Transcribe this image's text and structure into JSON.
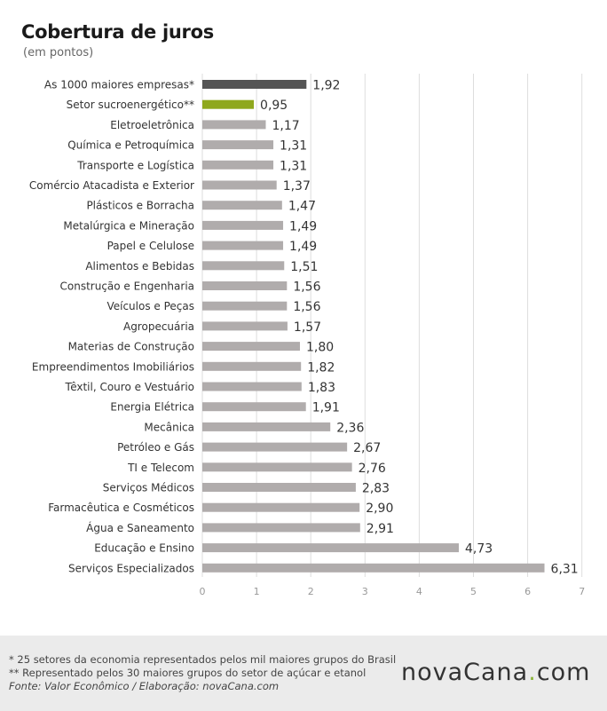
{
  "chart_data": {
    "type": "bar",
    "orientation": "horizontal",
    "title": "Cobertura de juros",
    "subtitle": "(em pontos)",
    "xlim": [
      0,
      7
    ],
    "xticks": [
      0,
      1,
      2,
      3,
      4,
      5,
      6,
      7
    ],
    "grid": true,
    "categories": [
      "As 1000 maiores empresas*",
      "Setor sucroenergético**",
      "Eletroeletrônica",
      "Química e Petroquímica",
      "Transporte e Logística",
      "Comércio Atacadista e Exterior",
      "Plásticos e Borracha",
      "Metalúrgica e Mineração",
      "Papel e Celulose",
      "Alimentos e Bebidas",
      "Construção e Engenharia",
      "Veículos e Peças",
      "Agropecuária",
      "Materias de Construção",
      "Empreendimentos Imobiliários",
      "Têxtil, Couro e Vestuário",
      "Energia Elétrica",
      "Mecânica",
      "Petróleo e Gás",
      "TI e Telecom",
      "Serviços Médicos",
      "Farmacêutica e Cosméticos",
      "Água e Saneamento",
      "Educação e Ensino",
      "Serviços Especializados"
    ],
    "values": [
      1.92,
      0.95,
      1.17,
      1.31,
      1.31,
      1.37,
      1.47,
      1.49,
      1.49,
      1.51,
      1.56,
      1.56,
      1.57,
      1.8,
      1.82,
      1.83,
      1.91,
      2.36,
      2.67,
      2.76,
      2.83,
      2.9,
      2.91,
      4.73,
      6.31
    ],
    "value_labels": [
      "1,92",
      "0,95",
      "1,17",
      "1,31",
      "1,31",
      "1,37",
      "1,47",
      "1,49",
      "1,49",
      "1,51",
      "1,56",
      "1,56",
      "1,57",
      "1,80",
      "1,82",
      "1,83",
      "1,91",
      "2,36",
      "2,67",
      "2,76",
      "2,83",
      "2,90",
      "2,91",
      "4,73",
      "6,31"
    ],
    "colors": {
      "highlight_total": "#555555",
      "highlight_sector": "#8fa81d",
      "default": "#b0acac",
      "grid": "#dddddd",
      "tick_label": "#999999",
      "value_label": "#333333",
      "category_label": "#333333"
    }
  },
  "footer": {
    "note1": "* 25 setores da economia representados pelos mil maiores grupos do Brasil",
    "note2": "** Representado pelos 30 maiores grupos do setor de açúcar e etanol",
    "source": "Fonte: Valor Econômico / Elaboração: novaCana.com"
  },
  "logo": {
    "name": "novaCana",
    "dot": ".",
    "tld": "com"
  }
}
